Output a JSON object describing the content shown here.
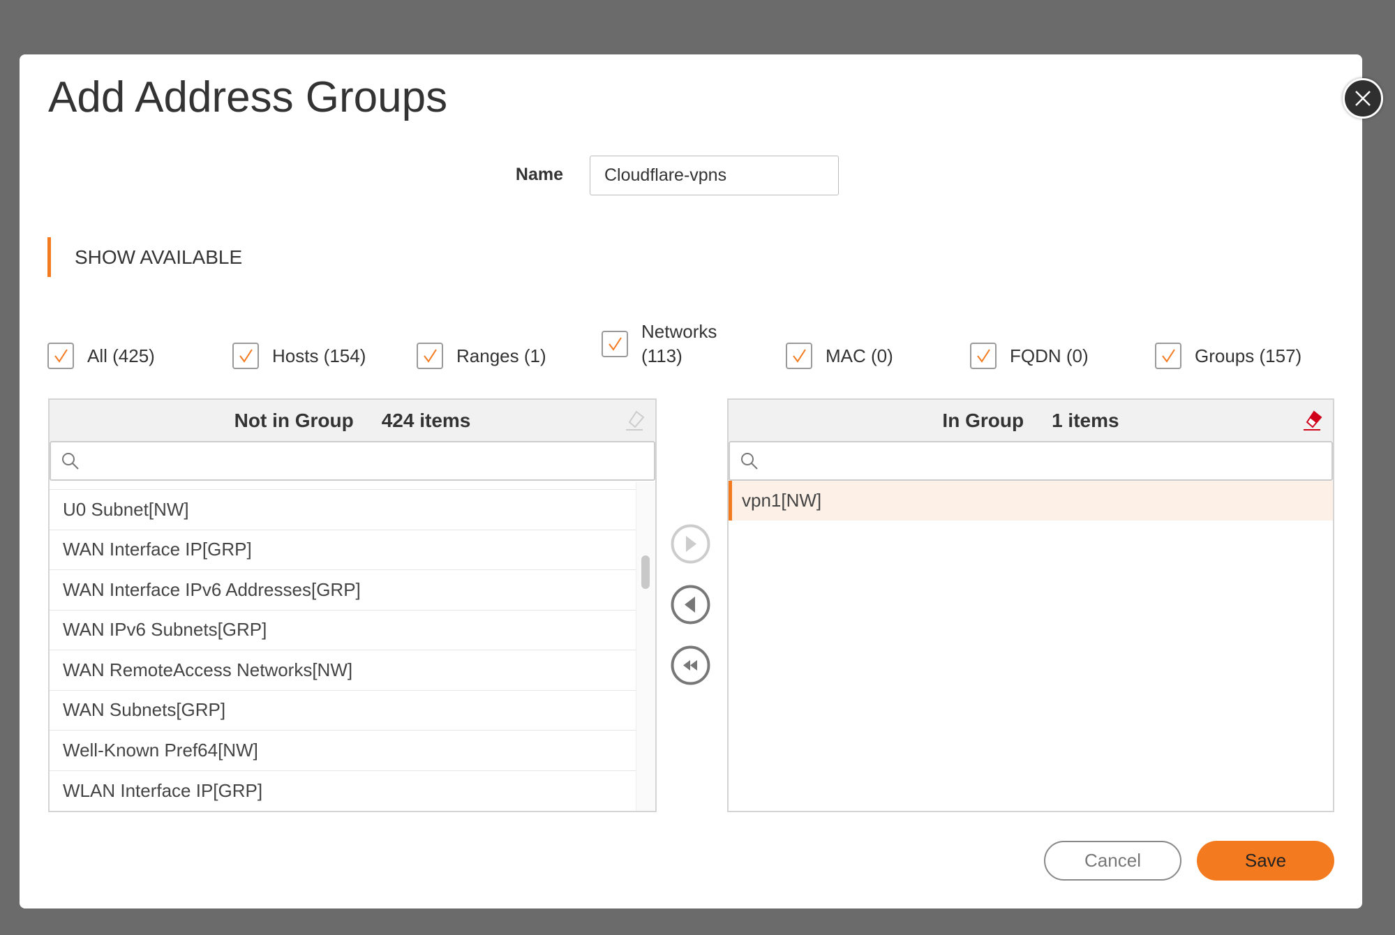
{
  "dialog": {
    "title": "Add Address Groups",
    "close_icon": "close-icon"
  },
  "name": {
    "label": "Name",
    "value": "Cloudflare-vpns"
  },
  "section": {
    "title": "SHOW AVAILABLE"
  },
  "filters": [
    {
      "label": "All (425)",
      "checked": true
    },
    {
      "label": "Hosts (154)",
      "checked": true
    },
    {
      "label": "Ranges (1)",
      "checked": true
    },
    {
      "label": "Networks (113)",
      "checked": true
    },
    {
      "label": "MAC (0)",
      "checked": true
    },
    {
      "label": "FQDN (0)",
      "checked": true
    },
    {
      "label": "Groups (157)",
      "checked": true
    }
  ],
  "left_panel": {
    "title": "Not in Group",
    "count": "424 items",
    "search_placeholder": "",
    "items": [
      "U0 Subnet[NW]",
      "WAN Interface IP[GRP]",
      "WAN Interface IPv6 Addresses[GRP]",
      "WAN IPv6 Subnets[GRP]",
      "WAN RemoteAccess Networks[NW]",
      "WAN Subnets[GRP]",
      "Well-Known Pref64[NW]",
      "WLAN Interface IP[GRP]"
    ]
  },
  "right_panel": {
    "title": "In Group",
    "count": "1 items",
    "search_placeholder": "",
    "items": [
      "vpn1[NW]"
    ]
  },
  "buttons": {
    "cancel": "Cancel",
    "save": "Save"
  },
  "colors": {
    "accent": "#f47a20",
    "selected_row": "#fdf0e7",
    "eraser_active": "#d0021b"
  }
}
